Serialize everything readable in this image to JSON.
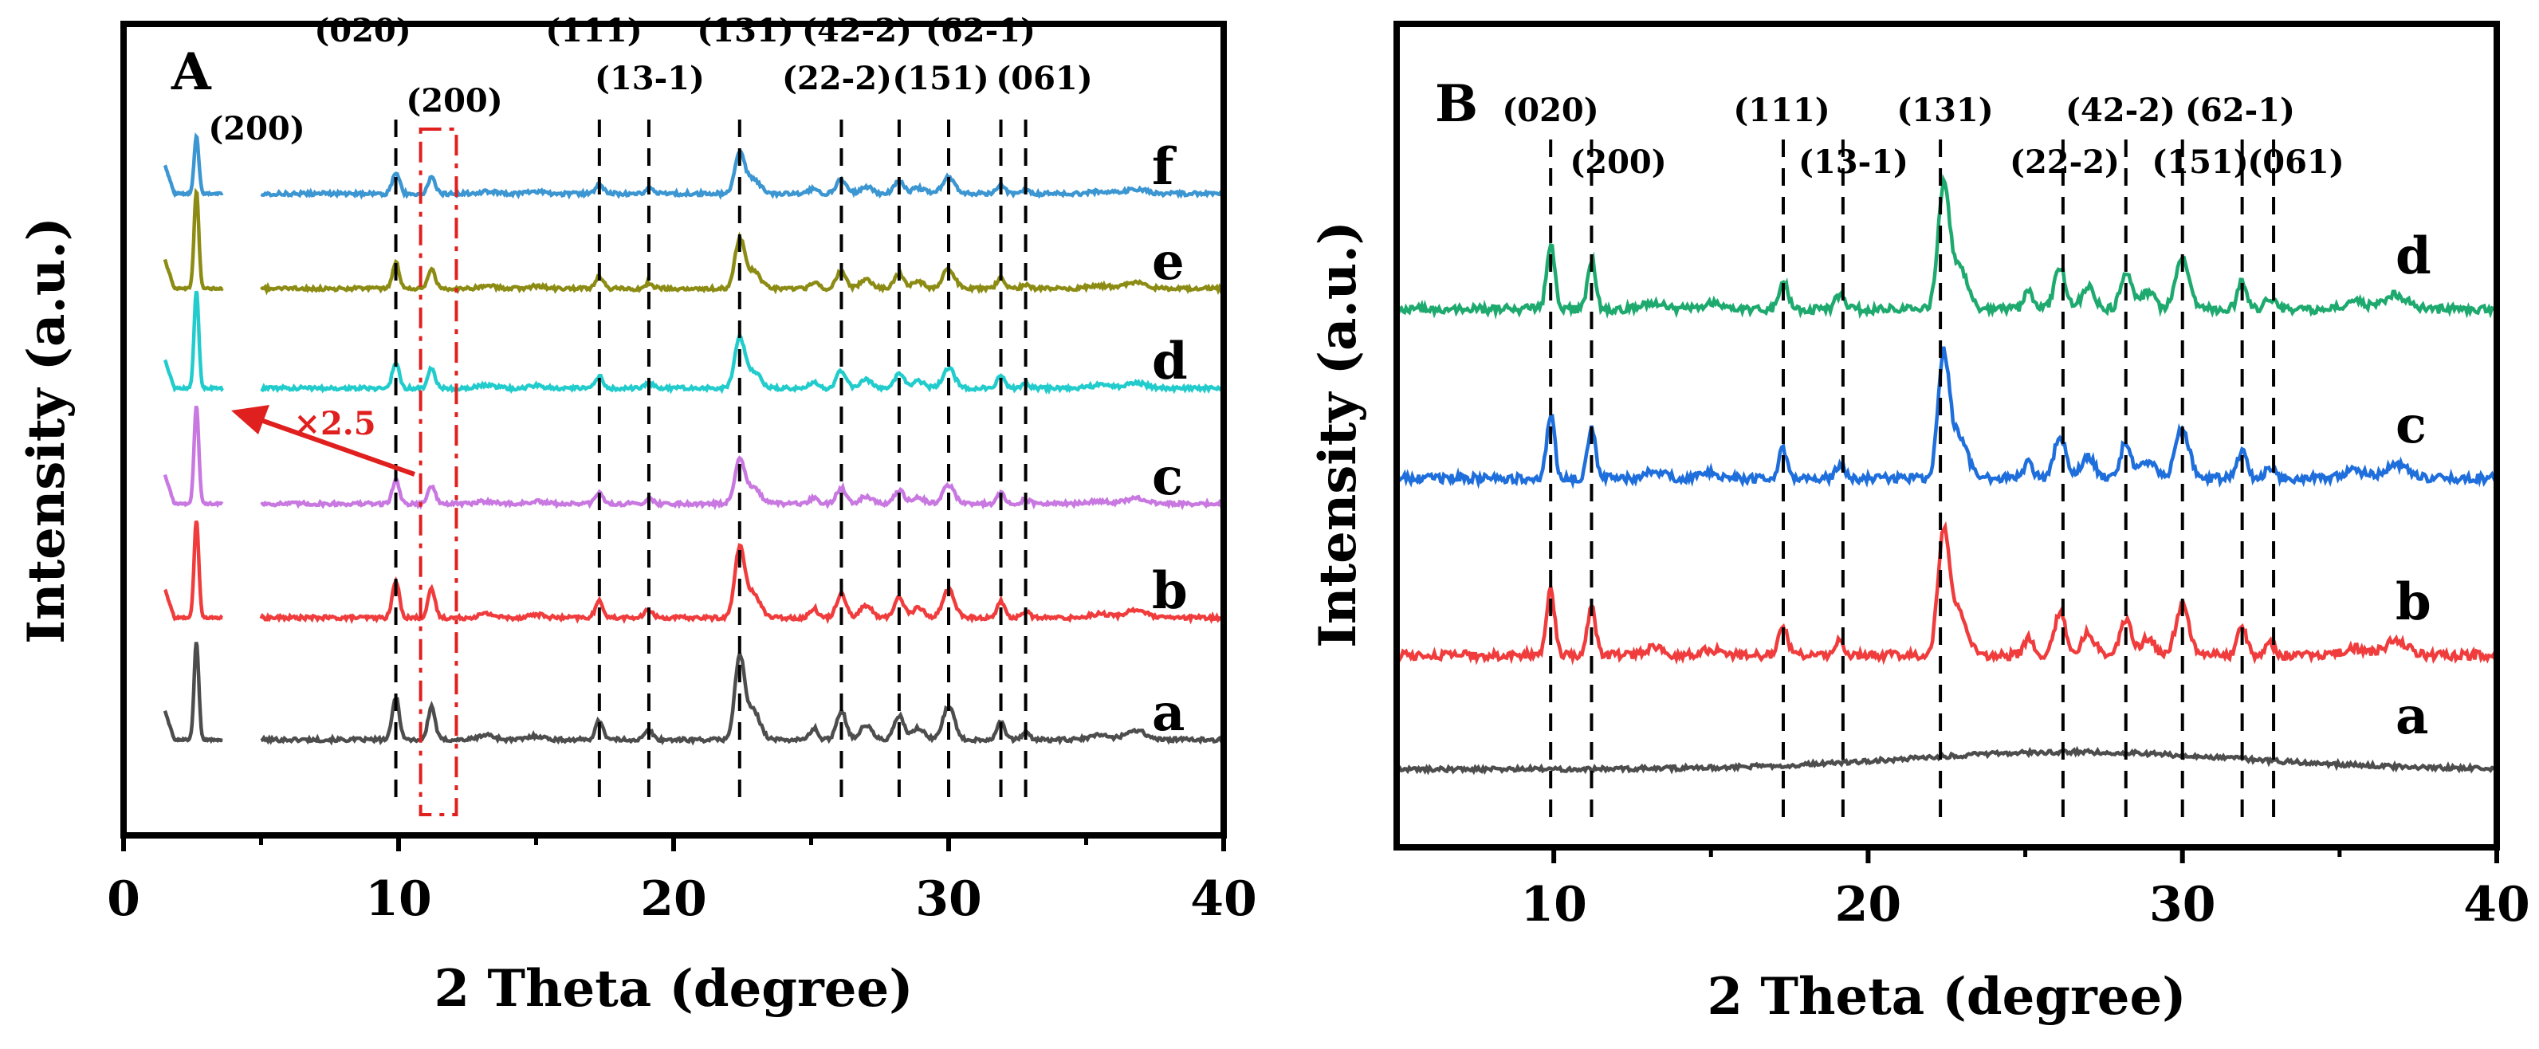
{
  "chart_data": [
    {
      "panel": "A",
      "type": "line",
      "xlabel": "2 Theta (degree)",
      "ylabel": "Intensity (a.u.)",
      "xlim": [
        0,
        40
      ],
      "x_ticks": [
        "0",
        "10",
        "20",
        "30",
        "40"
      ],
      "reflections": [
        {
          "label": "(020)",
          "x": 9.9
        },
        {
          "label": "(111)",
          "x": 17.3
        },
        {
          "label": "(13-1)",
          "x": 19.1
        },
        {
          "label": "(131)",
          "x": 22.4
        },
        {
          "label": "(22-2)",
          "x": 26.1
        },
        {
          "label": "(42-2)",
          "x": 28.2
        },
        {
          "label": "(151)",
          "x": 30.0
        },
        {
          "label": "(62-1)",
          "x": 31.9
        },
        {
          "label": "(061)",
          "x": 32.8
        }
      ],
      "box_label": "(200)",
      "box_range": [
        10.8,
        12.1
      ],
      "inset_label": "(200)",
      "inset_note": "×2.5",
      "series": [
        {
          "name": "a",
          "color": "#4d4d4d",
          "amp": 1.0
        },
        {
          "name": "b",
          "color": "#f03c3c",
          "amp": 0.85
        },
        {
          "name": "c",
          "color": "#c878e0",
          "amp": 0.55
        },
        {
          "name": "d",
          "color": "#22cccc",
          "amp": 0.6
        },
        {
          "name": "e",
          "color": "#8c8c14",
          "amp": 0.6
        },
        {
          "name": "f",
          "color": "#3c96d2",
          "amp": 0.5
        }
      ]
    },
    {
      "panel": "B",
      "type": "line",
      "xlabel": "2 Theta (degree)",
      "ylabel": "Intensity (a.u.)",
      "xlim": [
        5,
        40
      ],
      "x_ticks": [
        "10",
        "20",
        "30",
        "40"
      ],
      "reflections": [
        {
          "label": "(020)",
          "x": 9.9
        },
        {
          "label": "(200)",
          "x": 11.2
        },
        {
          "label": "(111)",
          "x": 17.3
        },
        {
          "label": "(13-1)",
          "x": 19.2
        },
        {
          "label": "(131)",
          "x": 22.3
        },
        {
          "label": "(22-2)",
          "x": 26.2
        },
        {
          "label": "(42-2)",
          "x": 28.2
        },
        {
          "label": "(151)",
          "x": 30.0
        },
        {
          "label": "(62-1)",
          "x": 31.9
        },
        {
          "label": "(061)",
          "x": 32.9
        }
      ],
      "series": [
        {
          "name": "a",
          "color": "#4d4d4d",
          "amorphous": true
        },
        {
          "name": "b",
          "color": "#f03c3c",
          "amp": 1.0
        },
        {
          "name": "c",
          "color": "#1e6edc",
          "amp": 1.0
        },
        {
          "name": "d",
          "color": "#1eaa6e",
          "amp": 1.0
        }
      ]
    }
  ]
}
